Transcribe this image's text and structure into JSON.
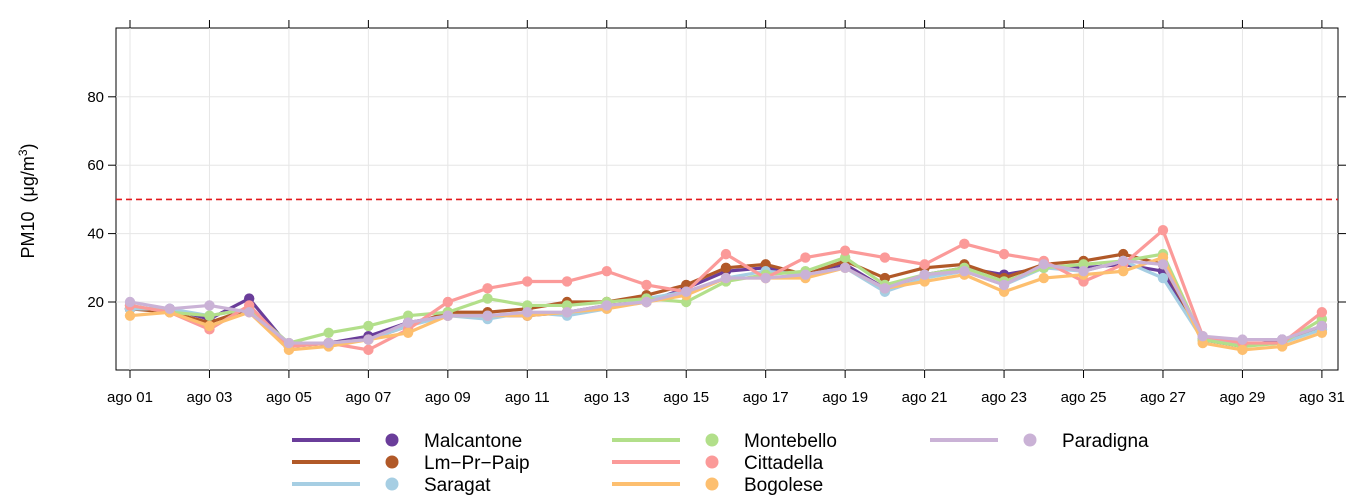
{
  "chart_data": {
    "type": "line",
    "ylabel": "PM10 (μg/m³)",
    "ylabel_main": "PM10",
    "ylabel_unit_prefix": "(μg/m",
    "ylabel_unit_sup": "3",
    "ylabel_unit_suffix": ")",
    "ylim": [
      0,
      100
    ],
    "y_ticks": [
      20,
      40,
      60,
      80
    ],
    "grid": true,
    "legend_position": "bottom",
    "threshold": {
      "value": 50,
      "color": "#e31a1c",
      "style": "dashed"
    },
    "x": [
      "ago 01",
      "ago 02",
      "ago 03",
      "ago 04",
      "ago 05",
      "ago 06",
      "ago 07",
      "ago 08",
      "ago 09",
      "ago 10",
      "ago 11",
      "ago 12",
      "ago 13",
      "ago 14",
      "ago 15",
      "ago 16",
      "ago 17",
      "ago 18",
      "ago 19",
      "ago 20",
      "ago 21",
      "ago 22",
      "ago 23",
      "ago 24",
      "ago 25",
      "ago 26",
      "ago 27",
      "ago 28",
      "ago 29",
      "ago 30",
      "ago 31"
    ],
    "x_tick_labels": [
      "ago 01",
      "ago 03",
      "ago 05",
      "ago 07",
      "ago 09",
      "ago 11",
      "ago 13",
      "ago 15",
      "ago 17",
      "ago 19",
      "ago 21",
      "ago 23",
      "ago 25",
      "ago 27",
      "ago 29",
      "ago 31"
    ],
    "series": [
      {
        "name": "Malcantone",
        "color": "#6a3d9a",
        "values": [
          18,
          18,
          15,
          21,
          7,
          8,
          10,
          14,
          16,
          16,
          16,
          17,
          19,
          20,
          24,
          29,
          30,
          28,
          31,
          24,
          28,
          30,
          28,
          30,
          30,
          31,
          29,
          9,
          7,
          9,
          12
        ]
      },
      {
        "name": "Lm−Pr−Paip",
        "color": "#b15928",
        "values": [
          18,
          17,
          14,
          18,
          7,
          8,
          9,
          13,
          17,
          17,
          18,
          20,
          20,
          22,
          25,
          30,
          31,
          28,
          32,
          27,
          30,
          31,
          27,
          31,
          32,
          34,
          31,
          9,
          8,
          8,
          13
        ]
      },
      {
        "name": "Saragat",
        "color": "#a6cee3",
        "values": [
          18,
          18,
          16,
          18,
          7,
          8,
          9,
          13,
          16,
          15,
          17,
          16,
          18,
          21,
          23,
          27,
          29,
          28,
          30,
          23,
          27,
          29,
          25,
          30,
          29,
          32,
          27,
          9,
          8,
          8,
          12
        ]
      },
      {
        "name": "Montebello",
        "color": "#b2df8a",
        "values": [
          19,
          17,
          16,
          18,
          8,
          11,
          13,
          16,
          17,
          21,
          19,
          19,
          20,
          21,
          20,
          26,
          28,
          29,
          33,
          25,
          28,
          30,
          26,
          30,
          31,
          32,
          34,
          9,
          7,
          8,
          15
        ]
      },
      {
        "name": "Cittadella",
        "color": "#fb9a99",
        "values": [
          19,
          17,
          12,
          19,
          7,
          8,
          6,
          12,
          20,
          24,
          26,
          26,
          29,
          25,
          23,
          34,
          27,
          33,
          35,
          33,
          31,
          37,
          34,
          32,
          26,
          31,
          41,
          10,
          8,
          8,
          17
        ]
      },
      {
        "name": "Bogolese",
        "color": "#fdbf6f",
        "values": [
          16,
          17,
          13,
          17,
          6,
          7,
          9,
          11,
          16,
          16,
          16,
          17,
          18,
          20,
          22,
          27,
          27,
          27,
          30,
          24,
          26,
          28,
          23,
          27,
          28,
          29,
          33,
          8,
          6,
          7,
          11
        ]
      },
      {
        "name": "Paradigna",
        "color": "#cab2d6",
        "values": [
          20,
          18,
          19,
          17,
          8,
          8,
          9,
          14,
          16,
          16,
          17,
          17,
          19,
          20,
          23,
          27,
          27,
          28,
          30,
          24,
          28,
          29,
          25,
          31,
          29,
          32,
          31,
          10,
          9,
          9,
          13
        ]
      }
    ]
  }
}
